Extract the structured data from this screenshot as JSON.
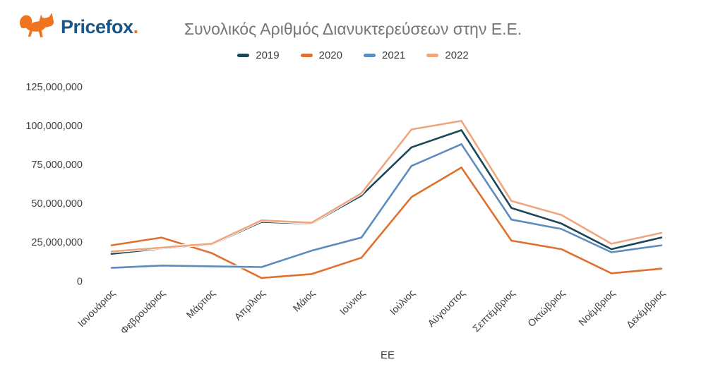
{
  "header": {
    "logo": {
      "brand": "Pricefox",
      "suffix": ".",
      "icon": "fox-icon",
      "brand_color": "#1a5586",
      "accent_color": "#f0731e"
    }
  },
  "chart_data": {
    "type": "line",
    "title": "Συνολικός Αριθμός Διανυκτερεύσεων στην Ε.Ε.",
    "xlabel": "ΕΕ",
    "ylabel": "",
    "ylim": [
      0,
      125000000
    ],
    "grid": false,
    "legend_position": "top",
    "yticks": [
      0,
      25000000,
      50000000,
      75000000,
      100000000,
      125000000
    ],
    "ytick_labels": [
      "0",
      "25,000,000",
      "50,000,000",
      "75,000,000",
      "100,000,000",
      "125,000,000"
    ],
    "categories": [
      "Ιανουάριος",
      "Φεβρουάριος",
      "Μάρτιος",
      "Απρίλιος",
      "Μάιος",
      "Ιούνιος",
      "Ιούλιος",
      "Αύγουστος",
      "Σεπτέμβριος",
      "Οκτώβριος",
      "Νοέμβριος",
      "Δεκέμβριος"
    ],
    "series": [
      {
        "name": "2019",
        "color": "#1c4758",
        "values": [
          17500000,
          21000000,
          23500000,
          38000000,
          37000000,
          55000000,
          86000000,
          97000000,
          47000000,
          37000000,
          20500000,
          28000000
        ]
      },
      {
        "name": "2020",
        "color": "#e0702f",
        "values": [
          23000000,
          28000000,
          18000000,
          2000000,
          4500000,
          15000000,
          54000000,
          73000000,
          26000000,
          20500000,
          5000000,
          8000000
        ]
      },
      {
        "name": "2021",
        "color": "#5c8cbe",
        "values": [
          8500000,
          10000000,
          9500000,
          9000000,
          19500000,
          28000000,
          74000000,
          88000000,
          39500000,
          33500000,
          18500000,
          23000000
        ]
      },
      {
        "name": "2022",
        "color": "#f0a67d",
        "values": [
          19000000,
          21500000,
          24000000,
          39000000,
          37500000,
          56500000,
          97500000,
          103000000,
          51500000,
          42500000,
          24000000,
          31000000
        ]
      }
    ]
  }
}
